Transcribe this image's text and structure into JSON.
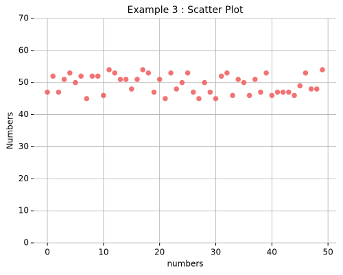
{
  "chart_data": {
    "type": "scatter",
    "title": "Example 3 : Scatter Plot",
    "x_label": "numbers",
    "y_label": "Numbers",
    "x": [
      0,
      1,
      2,
      3,
      4,
      5,
      6,
      7,
      8,
      9,
      10,
      11,
      12,
      13,
      14,
      15,
      16,
      17,
      18,
      19,
      20,
      21,
      22,
      23,
      24,
      25,
      26,
      27,
      28,
      29,
      30,
      31,
      32,
      33,
      34,
      35,
      36,
      37,
      38,
      39,
      40,
      41,
      42,
      43,
      44,
      45,
      46,
      47,
      48,
      49
    ],
    "values": [
      47,
      52,
      47,
      51,
      53,
      50,
      52,
      45,
      52,
      52,
      46,
      54,
      53,
      51,
      51,
      48,
      51,
      54,
      53,
      47,
      51,
      45,
      53,
      48,
      50,
      53,
      47,
      45,
      50,
      47,
      45,
      52,
      53,
      46,
      51,
      50,
      46,
      51,
      47,
      53,
      46,
      47,
      47,
      47,
      46,
      49,
      53,
      48,
      48,
      54
    ],
    "color": "#ef5b5b",
    "xlim": [
      -2.45,
      51.45
    ],
    "xticks": [
      0,
      10,
      20,
      30,
      40,
      50
    ],
    "ylim": [
      0,
      70
    ],
    "yticks": [
      0,
      10,
      20,
      30,
      40,
      50,
      60,
      70
    ],
    "grid": true
  }
}
